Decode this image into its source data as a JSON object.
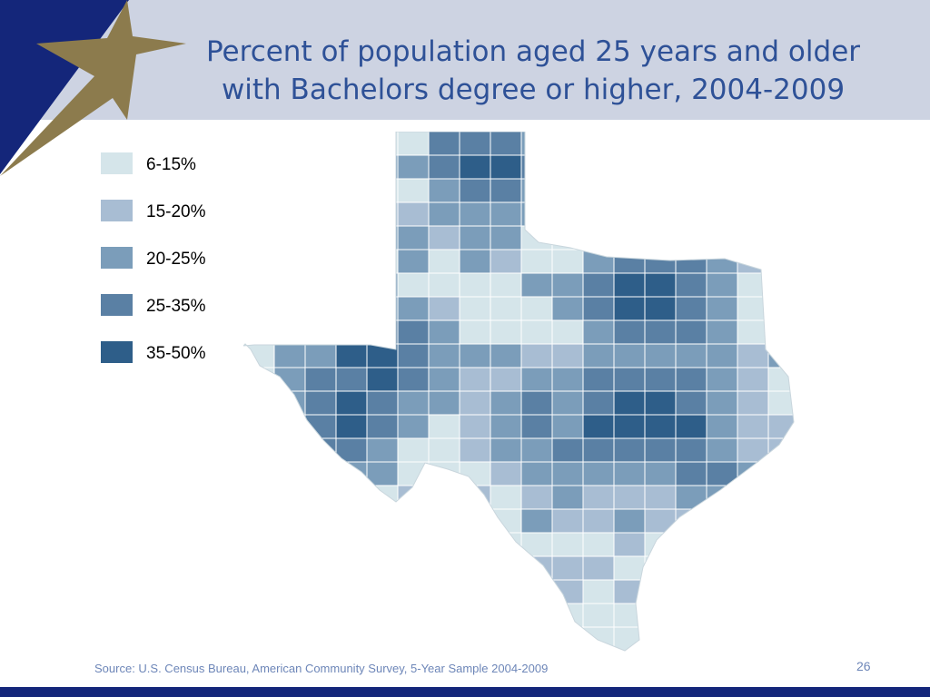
{
  "title": {
    "line1": "Percent of population aged 25 years and older",
    "line2": "with Bachelors degree or higher, 2004-2009"
  },
  "legend": [
    {
      "label": "6-15%",
      "color": "#d5e5ea"
    },
    {
      "label": "15-20%",
      "color": "#a8bdd3"
    },
    {
      "label": "20-25%",
      "color": "#7b9dba"
    },
    {
      "label": "25-35%",
      "color": "#5a80a4"
    },
    {
      "label": "35-50%",
      "color": "#2e5e89"
    }
  ],
  "map": {
    "region": "Texas counties",
    "border_color": "#ffffff"
  },
  "source": "Source: U.S. Census Bureau, American Community Survey, 5-Year Sample 2004-2009",
  "page_number": "26",
  "colors": {
    "header_band": "#cdd3e2",
    "title_text": "#2e5197",
    "navy": "#14267a",
    "gold_star": "#8c7b4d"
  }
}
